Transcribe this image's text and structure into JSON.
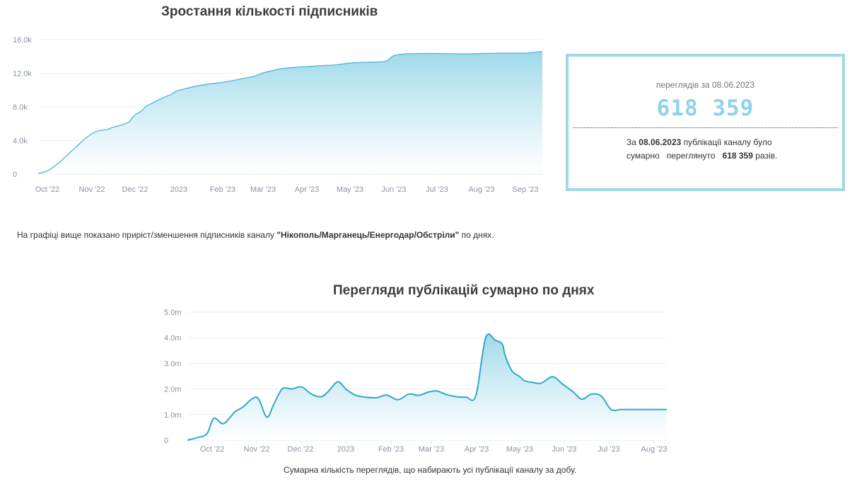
{
  "chart_data": [
    {
      "type": "area",
      "title": "Зростання кількості підписників",
      "xlabel": "",
      "ylabel": "",
      "x_tick_labels": [
        "Oct '22",
        "Nov '22",
        "Dec '22",
        "2023",
        "Feb '23",
        "Mar '23",
        "Apr '23",
        "May '23",
        "Jun '23",
        "Jul '23",
        "Aug '23",
        "Sep '23"
      ],
      "y_tick_labels": [
        "0",
        "4.0k",
        "8.0k",
        "12.0k",
        "16.0k"
      ],
      "y_ticks": [
        0,
        4000,
        8000,
        12000,
        16000
      ],
      "ylim": [
        0,
        16000
      ],
      "xlim": [
        "2022-09-26",
        "2023-09-28"
      ],
      "grid": true,
      "legend": "none",
      "series": [
        {
          "x": [
            "2022-09-26",
            "2022-10-01",
            "2022-10-06",
            "2022-10-12",
            "2022-10-18",
            "2022-10-24",
            "2022-10-30",
            "2022-11-05",
            "2022-11-10",
            "2022-11-15",
            "2022-11-20",
            "2022-11-25",
            "2022-12-01",
            "2022-12-04",
            "2022-12-06",
            "2022-12-10",
            "2022-12-14",
            "2022-12-20",
            "2022-12-26",
            "2023-01-01",
            "2023-01-05",
            "2023-01-12",
            "2023-01-20",
            "2023-02-01",
            "2023-02-10",
            "2023-02-20",
            "2023-03-01",
            "2023-03-05",
            "2023-03-10",
            "2023-03-15",
            "2023-03-20",
            "2023-03-25",
            "2023-04-01",
            "2023-04-10",
            "2023-04-20",
            "2023-05-01",
            "2023-05-10",
            "2023-05-20",
            "2023-06-01",
            "2023-06-05",
            "2023-06-08",
            "2023-06-12",
            "2023-06-20",
            "2023-07-01",
            "2023-07-15",
            "2023-08-01",
            "2023-08-15",
            "2023-09-01",
            "2023-09-15",
            "2023-09-28"
          ],
          "values": [
            100,
            250,
            700,
            1500,
            2400,
            3300,
            4200,
            4900,
            5200,
            5300,
            5600,
            5800,
            6200,
            6800,
            7100,
            7500,
            8100,
            8600,
            9100,
            9500,
            9900,
            10200,
            10500,
            10800,
            11000,
            11300,
            11600,
            11800,
            12100,
            12300,
            12500,
            12600,
            12700,
            12800,
            12900,
            13000,
            13200,
            13300,
            13350,
            13400,
            13600,
            14100,
            14300,
            14350,
            14350,
            14300,
            14350,
            14400,
            14400,
            14600
          ],
          "color": "#4fb5d3"
        }
      ]
    },
    {
      "type": "area",
      "title": "Перегляди публікацій сумарно по днях",
      "xlabel": "",
      "ylabel": "",
      "x_tick_labels": [
        "Oct '22",
        "Nov '22",
        "Dec '22",
        "2023",
        "Feb '23",
        "Mar '23",
        "Apr '23",
        "May '23",
        "Jun '23",
        "Jul '23",
        "Aug '23"
      ],
      "y_tick_labels": [
        "0",
        "1.0m",
        "2.0m",
        "3.0m",
        "4.0m",
        "5.0m"
      ],
      "y_ticks": [
        0,
        1000000,
        2000000,
        3000000,
        4000000,
        5000000
      ],
      "ylim": [
        0,
        5000000
      ],
      "xlim": [
        "2022-09-16",
        "2023-08-26"
      ],
      "grid": true,
      "legend": "none",
      "series": [
        {
          "x": [
            "2022-09-16",
            "2022-09-23",
            "2022-09-30",
            "2022-10-05",
            "2022-10-12",
            "2022-10-20",
            "2022-10-26",
            "2022-11-01",
            "2022-11-06",
            "2022-11-12",
            "2022-11-17",
            "2022-11-23",
            "2022-11-30",
            "2022-12-07",
            "2022-12-14",
            "2022-12-21",
            "2022-12-26",
            "2023-01-02",
            "2023-01-08",
            "2023-01-15",
            "2023-01-22",
            "2023-01-30",
            "2023-02-06",
            "2023-02-14",
            "2023-02-22",
            "2023-03-01",
            "2023-03-08",
            "2023-03-14",
            "2023-03-21",
            "2023-03-28",
            "2023-04-04",
            "2023-04-11",
            "2023-04-18",
            "2023-04-25",
            "2023-04-30",
            "2023-05-02",
            "2023-05-07",
            "2023-05-12",
            "2023-05-16",
            "2023-05-22",
            "2023-05-28",
            "2023-06-05",
            "2023-06-12",
            "2023-06-20",
            "2023-06-26",
            "2023-07-03",
            "2023-07-10",
            "2023-07-17",
            "2023-07-24",
            "2023-07-31",
            "2023-08-07",
            "2023-08-14",
            "2023-08-20",
            "2023-08-26"
          ],
          "values": [
            0,
            100000,
            250000,
            850000,
            650000,
            1100000,
            1300000,
            1600000,
            1620000,
            900000,
            1400000,
            2000000,
            2000000,
            2080000,
            1800000,
            1700000,
            1900000,
            2280000,
            1980000,
            1750000,
            1680000,
            1660000,
            1760000,
            1580000,
            1800000,
            1750000,
            1880000,
            1920000,
            1780000,
            1700000,
            1680000,
            1740000,
            4000000,
            3900000,
            3750000,
            3300000,
            2700000,
            2500000,
            2320000,
            2250000,
            2230000,
            2480000,
            2200000,
            1880000,
            1600000,
            1800000,
            1720000,
            1200000,
            1200000,
            1200000,
            1200000,
            1200000,
            1200000,
            1200000
          ],
          "color": "#2fa8cc"
        }
      ]
    }
  ],
  "charts": {
    "subscribers": {
      "title": "Зростання кількості підписників"
    },
    "views": {
      "title": "Перегляди публікацій сумарно по днях"
    }
  },
  "description1": {
    "prefix": "На графіці вище показано приріст/зменшення підписників каналу ",
    "channel": "\"Нікополь/Марганець/Енергодар/Обстріли\"",
    "suffix": " по днях."
  },
  "description2": "Сумарна кількість переглядів, що набирають усі публікації каналу за добу.",
  "stats": {
    "label": "переглядів за 08.06.2023",
    "value": "618 359",
    "text_1": "За ",
    "date": "08.06.2023",
    "text_2": " публікації каналу було",
    "text_3": "сумарно",
    "text_4": "переглянуто",
    "count": "618 359",
    "text_5": " разів."
  },
  "colors": {
    "line_subscribers": "#4fb5d3",
    "line_views": "#2fa8cc",
    "area_top": "#9fd9ea",
    "area_bottom": "#ffffff",
    "box_border": "#9fd8e6",
    "stats_value": "#8fd3e8"
  }
}
